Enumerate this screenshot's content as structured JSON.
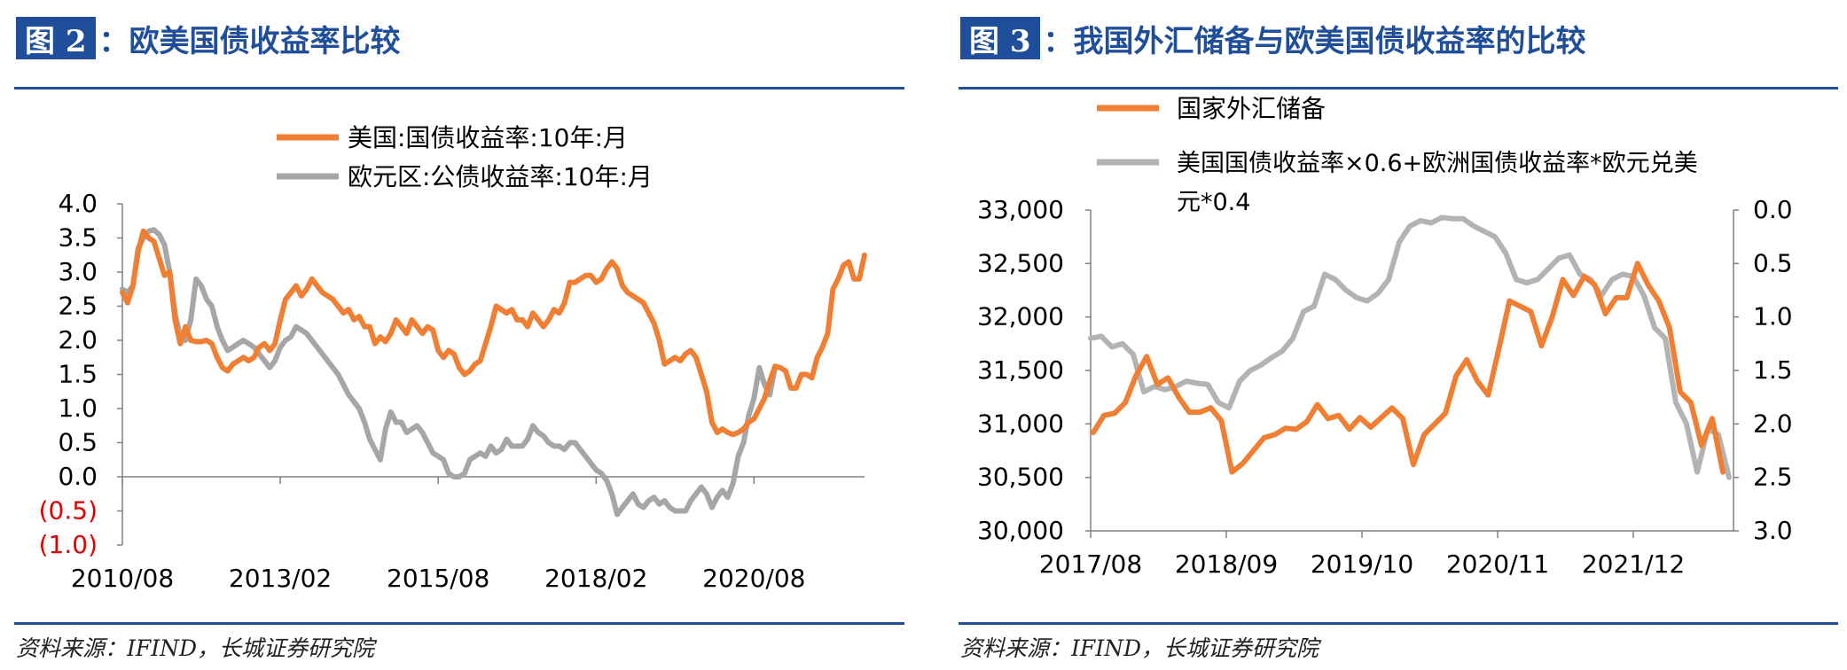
{
  "left": {
    "badge": "图 2",
    "title": "：欧美国债收益率比较",
    "source": "资料来源：IFIND，长城证券研究院",
    "chart_data": {
      "type": "line",
      "x_tick_labels": [
        "2010/08",
        "2013/02",
        "2015/08",
        "2018/02",
        "2020/08"
      ],
      "y_tick_labels": [
        "4.0",
        "3.5",
        "3.0",
        "2.5",
        "2.0",
        "1.5",
        "1.0",
        "0.5",
        "0.0",
        "(0.5)",
        "(1.0)"
      ],
      "ylim": [
        -1.0,
        4.0
      ],
      "negative_label_color": "#e00000",
      "legend_position": "top",
      "series": [
        {
          "name": "美国:国债收益率:10年:月",
          "color": "#f07f33",
          "values": [
            2.7,
            2.55,
            2.8,
            3.3,
            3.6,
            3.5,
            3.45,
            3.2,
            2.95,
            3.0,
            2.3,
            1.95,
            2.2,
            2.0,
            1.98,
            1.98,
            2.0,
            1.95,
            1.75,
            1.6,
            1.55,
            1.65,
            1.7,
            1.75,
            1.7,
            1.75,
            1.9,
            1.95,
            1.85,
            1.95,
            2.3,
            2.6,
            2.7,
            2.8,
            2.65,
            2.75,
            2.9,
            2.8,
            2.7,
            2.65,
            2.6,
            2.5,
            2.4,
            2.45,
            2.3,
            2.35,
            2.2,
            2.2,
            1.95,
            2.05,
            1.98,
            2.1,
            2.3,
            2.2,
            2.1,
            2.3,
            2.2,
            2.1,
            2.2,
            2.15,
            1.85,
            1.75,
            1.85,
            1.8,
            1.6,
            1.5,
            1.55,
            1.65,
            1.7,
            1.95,
            2.2,
            2.5,
            2.45,
            2.4,
            2.45,
            2.3,
            2.3,
            2.2,
            2.4,
            2.3,
            2.2,
            2.3,
            2.45,
            2.4,
            2.55,
            2.85,
            2.85,
            2.9,
            2.95,
            2.95,
            2.85,
            2.9,
            3.05,
            3.15,
            3.05,
            2.8,
            2.7,
            2.65,
            2.6,
            2.55,
            2.4,
            2.25,
            2.0,
            1.65,
            1.7,
            1.75,
            1.7,
            1.8,
            1.85,
            1.75,
            1.5,
            1.25,
            0.8,
            0.65,
            0.7,
            0.65,
            0.62,
            0.65,
            0.7,
            0.8,
            0.85,
            1.0,
            1.15,
            1.4,
            1.62,
            1.6,
            1.55,
            1.3,
            1.3,
            1.5,
            1.5,
            1.45,
            1.75,
            1.9,
            2.1,
            2.75,
            2.9,
            3.1,
            3.15,
            2.9,
            2.9,
            3.25
          ]
        },
        {
          "name": "欧元区:公债收益率:10年:月",
          "color": "#a6a6a6",
          "values": [
            2.75,
            2.7,
            2.8,
            3.35,
            3.5,
            3.6,
            3.62,
            3.55,
            3.4,
            3.0,
            2.4,
            2.05,
            2.0,
            2.3,
            2.9,
            2.8,
            2.6,
            2.5,
            2.2,
            2.0,
            1.85,
            1.9,
            1.95,
            2.0,
            1.95,
            1.9,
            1.8,
            1.7,
            1.6,
            1.7,
            1.9,
            2.0,
            2.05,
            2.2,
            2.15,
            2.1,
            2.0,
            1.9,
            1.8,
            1.7,
            1.6,
            1.5,
            1.35,
            1.2,
            1.1,
            1.0,
            0.8,
            0.55,
            0.4,
            0.25,
            0.7,
            0.95,
            0.8,
            0.8,
            0.65,
            0.7,
            0.75,
            0.65,
            0.5,
            0.35,
            0.3,
            0.25,
            0.05,
            0.0,
            0.0,
            0.05,
            0.25,
            0.3,
            0.35,
            0.3,
            0.45,
            0.35,
            0.4,
            0.55,
            0.45,
            0.45,
            0.45,
            0.55,
            0.75,
            0.65,
            0.6,
            0.5,
            0.45,
            0.45,
            0.4,
            0.5,
            0.5,
            0.4,
            0.3,
            0.2,
            0.1,
            0.05,
            -0.05,
            -0.25,
            -0.55,
            -0.45,
            -0.35,
            -0.25,
            -0.4,
            -0.45,
            -0.35,
            -0.3,
            -0.4,
            -0.35,
            -0.45,
            -0.5,
            -0.5,
            -0.5,
            -0.35,
            -0.25,
            -0.15,
            -0.25,
            -0.45,
            -0.3,
            -0.2,
            -0.3,
            -0.1,
            0.3,
            0.5,
            0.9,
            1.15,
            1.6,
            1.35,
            1.2,
            1.6
          ]
        }
      ]
    }
  },
  "right": {
    "badge": "图 3",
    "title": "：我国外汇储备与欧美国债收益率的比较",
    "source": "资料来源：IFIND，长城证券研究院",
    "chart_data": {
      "type": "line",
      "x_tick_labels": [
        "2017/08",
        "2018/09",
        "2019/10",
        "2020/11",
        "2021/12"
      ],
      "y_left_tick_labels": [
        "33,000",
        "32,500",
        "32,000",
        "31,500",
        "31,000",
        "30,500",
        "30,000"
      ],
      "y_right_tick_labels": [
        "0.0",
        "0.5",
        "1.0",
        "1.5",
        "2.0",
        "2.5",
        "3.0"
      ],
      "ylim_left": [
        30000,
        33000
      ],
      "ylim_right": [
        0.0,
        3.0
      ],
      "right_axis_inverted": true,
      "legend_position": "top-left",
      "series": [
        {
          "name": "国家外汇储备",
          "axis": "left",
          "color": "#f07f33",
          "values": [
            30920,
            31080,
            31100,
            31200,
            31450,
            31630,
            31370,
            31430,
            31250,
            31110,
            31110,
            31150,
            31030,
            30550,
            30630,
            30750,
            30870,
            30900,
            30960,
            30950,
            31020,
            31180,
            31050,
            31080,
            30950,
            31060,
            30970,
            31060,
            31150,
            31050,
            30620,
            30900,
            31000,
            31100,
            31450,
            31600,
            31400,
            31270,
            31700,
            32150,
            32100,
            32050,
            31730,
            32000,
            32350,
            32200,
            32380,
            32300,
            32030,
            32180,
            32180,
            32500,
            32300,
            32150,
            31900,
            31300,
            31200,
            30800,
            31050,
            30550
          ]
        },
        {
          "name": "美国国债收益率×0.6+欧洲国债收益率*欧元兑美元*0.4",
          "axis": "right",
          "color": "#b3b3b3",
          "values": [
            1.2,
            1.18,
            1.28,
            1.25,
            1.35,
            1.7,
            1.65,
            1.68,
            1.65,
            1.6,
            1.62,
            1.63,
            1.8,
            1.85,
            1.6,
            1.5,
            1.45,
            1.38,
            1.32,
            1.2,
            0.95,
            0.9,
            0.6,
            0.65,
            0.75,
            0.82,
            0.85,
            0.78,
            0.65,
            0.3,
            0.15,
            0.1,
            0.12,
            0.07,
            0.08,
            0.08,
            0.15,
            0.2,
            0.25,
            0.4,
            0.65,
            0.68,
            0.65,
            0.55,
            0.45,
            0.42,
            0.6,
            0.65,
            0.8,
            0.65,
            0.6,
            0.62,
            0.8,
            1.1,
            1.2,
            1.8,
            2.0,
            2.45,
            2.05,
            2.1,
            2.5
          ]
        }
      ]
    }
  }
}
